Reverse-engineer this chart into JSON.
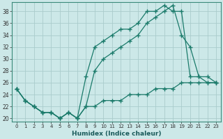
{
  "xlabel": "Humidex (Indice chaleur)",
  "background_color": "#cce8e8",
  "grid_color": "#aacccc",
  "line_color": "#1a7a6a",
  "xlim": [
    -0.5,
    23.5
  ],
  "ylim": [
    19.5,
    39.5
  ],
  "yticks": [
    20,
    22,
    24,
    26,
    28,
    30,
    32,
    34,
    36,
    38
  ],
  "xticks": [
    0,
    1,
    2,
    3,
    4,
    5,
    6,
    7,
    8,
    9,
    10,
    11,
    12,
    13,
    14,
    15,
    16,
    17,
    18,
    19,
    20,
    21,
    22,
    23
  ],
  "curve1_x": [
    0,
    1,
    2,
    3,
    4,
    5,
    6,
    7,
    8,
    9,
    10,
    11,
    12,
    13,
    14,
    15,
    16,
    17,
    18,
    19,
    20,
    21,
    22,
    23
  ],
  "curve1_y": [
    25,
    23,
    22,
    21,
    21,
    20,
    21,
    20,
    27,
    32,
    33,
    34,
    35,
    35,
    36,
    38,
    38,
    39,
    38,
    38,
    27,
    27,
    26,
    26
  ],
  "curve2_x": [
    0,
    1,
    2,
    3,
    4,
    5,
    6,
    7,
    8,
    9,
    10,
    11,
    12,
    13,
    14,
    15,
    16,
    17,
    18,
    19,
    20,
    21,
    22,
    23
  ],
  "curve2_y": [
    25,
    23,
    22,
    21,
    21,
    20,
    21,
    20,
    22,
    28,
    30,
    31,
    32,
    33,
    34,
    36,
    37,
    38,
    39,
    34,
    32,
    27,
    27,
    26
  ],
  "curve3_x": [
    0,
    1,
    2,
    3,
    4,
    5,
    6,
    7,
    8,
    9,
    10,
    11,
    12,
    13,
    14,
    15,
    16,
    17,
    18,
    19,
    20,
    21,
    22,
    23
  ],
  "curve3_y": [
    25,
    23,
    22,
    21,
    21,
    20,
    21,
    20,
    22,
    22,
    23,
    23,
    23,
    24,
    24,
    24,
    25,
    25,
    25,
    26,
    26,
    26,
    26,
    26
  ]
}
